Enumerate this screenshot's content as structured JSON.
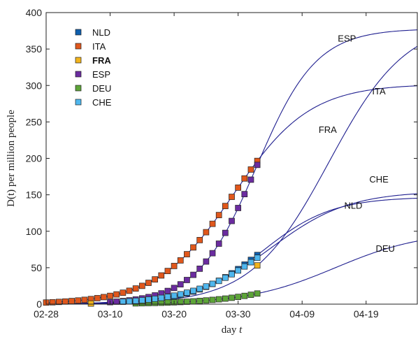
{
  "chart_data": {
    "type": "line",
    "xlabel_prefix": "day ",
    "xlabel_var": "t",
    "ylabel_text": "D(t) per million people",
    "ylim": [
      0,
      400
    ],
    "yticks": [
      0,
      50,
      100,
      150,
      200,
      250,
      300,
      350,
      400
    ],
    "xlim": [
      0,
      58
    ],
    "xticks": [
      {
        "day": 0,
        "label": "02-28"
      },
      {
        "day": 10,
        "label": "03-10"
      },
      {
        "day": 20,
        "label": "03-20"
      },
      {
        "day": 30,
        "label": "03-30"
      },
      {
        "day": 40,
        "label": "04-09"
      },
      {
        "day": 50,
        "label": "04-19"
      }
    ],
    "legend_position": "top-left",
    "grid": false,
    "line_color": "#1f1f8f",
    "series": [
      {
        "name": "NLD",
        "color": "#0f5fae",
        "plateau": 147,
        "growth": 0.185,
        "midpoint": 33.9,
        "data_start": 14,
        "data_end": 33,
        "end_label": "NLD",
        "end_label_at": [
          48,
          131
        ]
      },
      {
        "name": "ITA",
        "color": "#e0571c",
        "plateau": 302,
        "growth": 0.168,
        "midpoint": 29.3,
        "data_start": 0,
        "data_end": 33,
        "end_label": "ITA",
        "end_label_at": [
          52,
          288
        ]
      },
      {
        "name": "FRA",
        "color": "#f2b41c",
        "plateau": 390,
        "growth": 0.165,
        "midpoint": 44.2,
        "data_start": 7,
        "data_end": 33,
        "data_at_end_only": true,
        "end_label": "FRA",
        "end_label_at": [
          44,
          235
        ]
      },
      {
        "name": "ESP",
        "color": "#6b2ca0",
        "plateau": 378,
        "growth": 0.215,
        "midpoint": 32.9,
        "data_start": 10,
        "data_end": 33,
        "end_label": "ESP",
        "end_label_at": [
          47,
          360
        ]
      },
      {
        "name": "DEU",
        "color": "#5da538",
        "plateau": 100,
        "growth": 0.145,
        "midpoint": 45.2,
        "data_start": 14,
        "data_end": 33,
        "end_label": "DEU",
        "end_label_at": [
          53,
          72
        ]
      },
      {
        "name": "CHE",
        "color": "#4fb7ee",
        "plateau": 155,
        "growth": 0.165,
        "midpoint": 35.2,
        "data_start": 12,
        "data_end": 33,
        "end_label": "CHE",
        "end_label_at": [
          52,
          167
        ]
      }
    ]
  }
}
